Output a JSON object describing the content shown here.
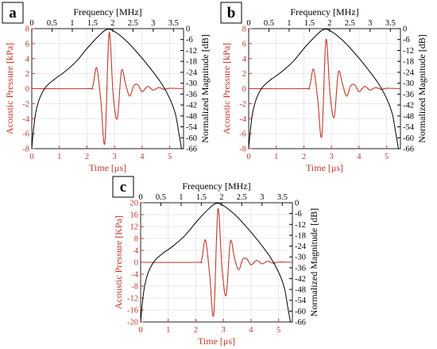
{
  "colors": {
    "pressure": "#c0392b",
    "spectrum": "#000000",
    "grid": "#e2e2e2",
    "axis": "#222222"
  },
  "chart_data": [
    {
      "type": "line",
      "panel_label": "a",
      "x_top_label": "Frequency [MHz]",
      "x_top_ticks": [
        "0",
        "0.5",
        "1",
        "1.5",
        "2",
        "2.5",
        "3",
        "3.5"
      ],
      "x_top_lim": [
        0,
        3.75
      ],
      "x_bottom_label": "Time [μs]",
      "x_bottom_ticks": [
        "0",
        "1",
        "2",
        "3",
        "4",
        "5"
      ],
      "x_bottom_lim": [
        0,
        5.5
      ],
      "y_left_label": "Acoustic Pressure [kPa]",
      "y_left_ticks": [
        "8",
        "6",
        "4",
        "2",
        "0",
        "-2",
        "-4",
        "-6",
        "-8"
      ],
      "y_left_lim": [
        -8,
        8
      ],
      "y_right_label": "Normalized Magnitude [dB]",
      "y_right_ticks": [
        "0",
        "-6",
        "-12",
        "-18",
        "-24",
        "-30",
        "-36",
        "-42",
        "-48",
        "-54",
        "-60",
        "-66"
      ],
      "y_right_lim": [
        -66,
        0
      ],
      "grid": true,
      "series": [
        {
          "axis": "bottom-left",
          "x": [
            0,
            2.0,
            2.2,
            2.35,
            2.5,
            2.65,
            2.8,
            2.95,
            3.1,
            3.25,
            3.4,
            3.55,
            3.7,
            3.85,
            4.0,
            4.2,
            4.4,
            4.6,
            4.8,
            5.0,
            5.5
          ],
          "y": [
            0,
            0,
            0.2,
            2.8,
            -1.5,
            -7.2,
            7.4,
            -0.8,
            -4.0,
            2.4,
            0.6,
            -1.0,
            0.4,
            0.5,
            -0.4,
            0.3,
            -0.2,
            0.15,
            -0.1,
            0.05,
            0
          ]
        },
        {
          "axis": "top-right",
          "x": [
            0,
            0.04,
            0.1,
            0.2,
            0.35,
            0.55,
            0.8,
            1.1,
            1.4,
            1.7,
            1.85,
            2.0,
            2.3,
            2.6,
            2.9,
            3.2,
            3.4,
            3.55,
            3.63,
            3.67,
            3.7
          ],
          "y": [
            -66,
            -56,
            -46,
            -38,
            -32,
            -28,
            -24,
            -18,
            -10,
            -3,
            -0.5,
            -1,
            -6,
            -13,
            -21,
            -30,
            -38,
            -47,
            -57,
            -62,
            -66
          ]
        }
      ]
    },
    {
      "type": "line",
      "panel_label": "b",
      "x_top_label": "Frequency [MHz]",
      "x_top_ticks": [
        "0",
        "0.5",
        "1",
        "1.5",
        "2",
        "2.5",
        "3",
        "3.5"
      ],
      "x_top_lim": [
        0,
        3.75
      ],
      "x_bottom_label": "Time [μs]",
      "x_bottom_ticks": [
        "0",
        "1",
        "2",
        "3",
        "4",
        "5"
      ],
      "x_bottom_lim": [
        0,
        5.5
      ],
      "y_left_label": "Acoustic Pressure [kPa]",
      "y_left_ticks": [
        "8",
        "6",
        "4",
        "2",
        "0",
        "-2",
        "-4",
        "-6",
        "-8"
      ],
      "y_left_lim": [
        -8,
        8
      ],
      "y_right_label": "Normalized Magnitude [dB]",
      "y_right_ticks": [
        "0",
        "-6",
        "-12",
        "-18",
        "-24",
        "-30",
        "-36",
        "-42",
        "-48",
        "-54",
        "-60",
        "-66"
      ],
      "y_right_lim": [
        -66,
        0
      ],
      "grid": true,
      "series": [
        {
          "axis": "bottom-left",
          "x": [
            0,
            2.0,
            2.2,
            2.35,
            2.5,
            2.65,
            2.8,
            2.95,
            3.1,
            3.25,
            3.4,
            3.55,
            3.7,
            3.85,
            4.0,
            4.2,
            4.4,
            4.6,
            4.8,
            5.0,
            5.5
          ],
          "y": [
            0,
            0,
            0.2,
            2.6,
            -1.4,
            -6.3,
            6.5,
            -0.8,
            -3.8,
            2.2,
            0.6,
            -1.0,
            0.4,
            0.5,
            -0.4,
            0.3,
            -0.2,
            0.15,
            -0.1,
            0.05,
            0
          ]
        },
        {
          "axis": "top-right",
          "x": [
            0,
            0.04,
            0.1,
            0.2,
            0.35,
            0.55,
            0.8,
            1.1,
            1.4,
            1.7,
            1.85,
            2.0,
            2.3,
            2.6,
            2.9,
            3.2,
            3.4,
            3.55,
            3.63,
            3.67,
            3.7
          ],
          "y": [
            -66,
            -56,
            -46,
            -38,
            -32,
            -28,
            -24,
            -18,
            -10,
            -3,
            -0.5,
            -1,
            -6,
            -13,
            -21,
            -30,
            -38,
            -47,
            -57,
            -62,
            -66
          ]
        }
      ]
    },
    {
      "type": "line",
      "panel_label": "c",
      "x_top_label": "Frequency [MHz]",
      "x_top_ticks": [
        "0",
        "0.5",
        "1",
        "1.5",
        "2",
        "2.5",
        "3",
        "3.5"
      ],
      "x_top_lim": [
        0,
        3.75
      ],
      "x_bottom_label": "Time [μs]",
      "x_bottom_ticks": [
        "0",
        "1",
        "2",
        "3",
        "4",
        "5"
      ],
      "x_bottom_lim": [
        0,
        5.5
      ],
      "y_left_label": "Acoustic Pressure [KPa]",
      "y_left_ticks": [
        "20",
        "16",
        "12",
        "8",
        "4",
        "0",
        "-4",
        "-8",
        "-12",
        "-16",
        "-20"
      ],
      "y_left_lim": [
        -20,
        20
      ],
      "y_right_label": "Normalized Magnitude [dB]",
      "y_right_ticks": [
        "0",
        "-6",
        "-12",
        "-18",
        "-24",
        "-30",
        "-36",
        "-42",
        "-48",
        "-54",
        "-60",
        "-66"
      ],
      "y_right_lim": [
        -66,
        0
      ],
      "grid": true,
      "series": [
        {
          "axis": "bottom-left",
          "x": [
            0,
            2.0,
            2.2,
            2.35,
            2.5,
            2.65,
            2.8,
            2.95,
            3.1,
            3.25,
            3.4,
            3.55,
            3.7,
            3.85,
            4.0,
            4.2,
            4.4,
            4.6,
            4.8,
            5.0,
            5.5
          ],
          "y": [
            0,
            0,
            0.5,
            7.5,
            -4,
            -17.5,
            17.8,
            -2,
            -11,
            7,
            1.5,
            -2.5,
            1,
            1.2,
            -0.9,
            0.7,
            -0.5,
            0.4,
            -0.3,
            0.1,
            0
          ]
        },
        {
          "axis": "top-right",
          "x": [
            0,
            0.04,
            0.1,
            0.2,
            0.35,
            0.55,
            0.8,
            1.1,
            1.4,
            1.7,
            1.85,
            2.0,
            2.3,
            2.6,
            2.9,
            3.2,
            3.4,
            3.55,
            3.63,
            3.67,
            3.7
          ],
          "y": [
            -66,
            -56,
            -46,
            -38,
            -32,
            -28,
            -24,
            -18,
            -10,
            -3,
            -0.5,
            -1,
            -6,
            -13,
            -21,
            -30,
            -38,
            -47,
            -57,
            -62,
            -66
          ]
        }
      ]
    }
  ]
}
